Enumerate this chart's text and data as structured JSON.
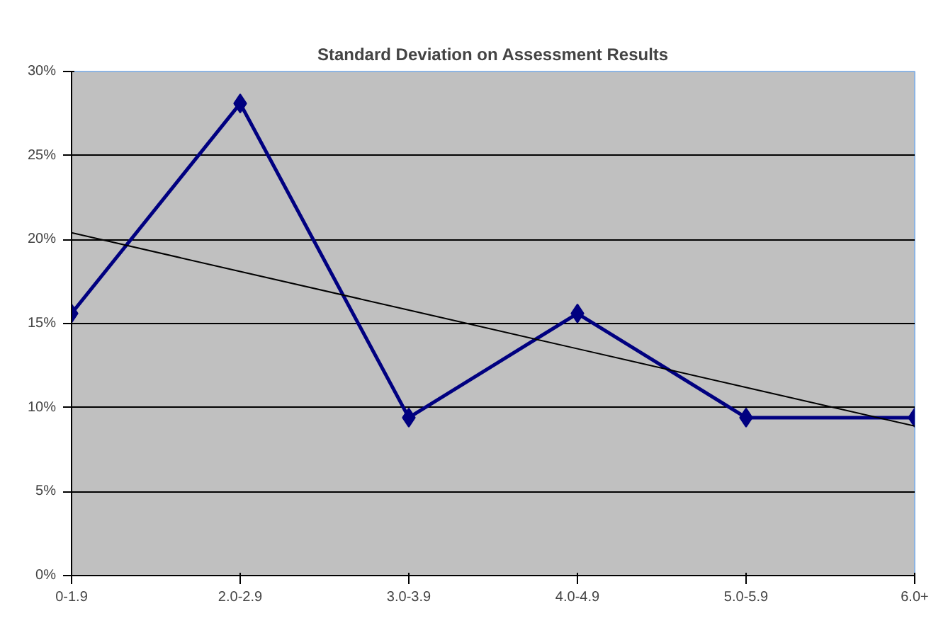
{
  "chart_data": {
    "type": "line",
    "title": "Standard Deviation on Assessment Results",
    "categories": [
      "0-1.9",
      "2.0-2.9",
      "3.0-3.9",
      "4.0-4.9",
      "5.0-5.9",
      "6.0+"
    ],
    "series": [
      {
        "color": "#000080",
        "values": [
          15.6,
          28.1,
          9.4,
          15.6,
          9.4,
          9.4
        ],
        "marker": "diamond"
      },
      {
        "color": "#000000",
        "values": [
          20.4,
          18.1,
          15.8,
          13.5,
          11.2,
          8.9
        ],
        "marker": "none"
      }
    ],
    "ylim": [
      0,
      30
    ],
    "yticks": [
      {
        "value": 0,
        "label": "0%"
      },
      {
        "value": 5,
        "label": "5%"
      },
      {
        "value": 10,
        "label": "10%"
      },
      {
        "value": 15,
        "label": "15%"
      },
      {
        "value": 20,
        "label": "20%"
      },
      {
        "value": 25,
        "label": "25%"
      },
      {
        "value": 30,
        "label": "30%"
      }
    ],
    "grid": "y"
  }
}
